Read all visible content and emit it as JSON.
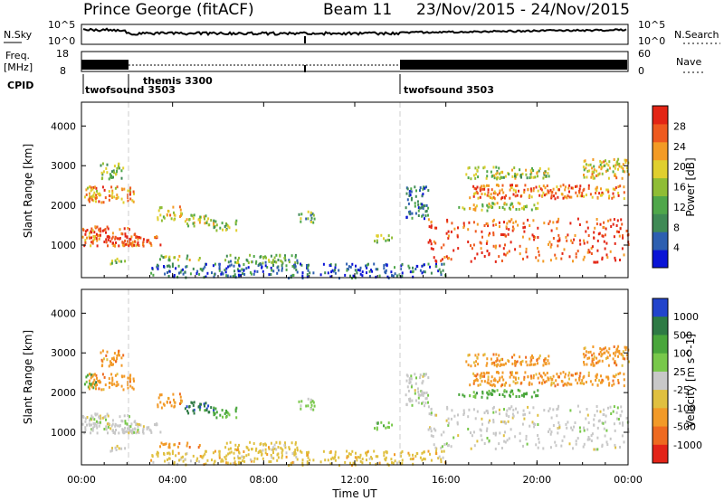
{
  "header": {
    "site": "Prince George (fitACF)",
    "beam": "Beam 11",
    "dates": "23/Nov/2015 - 24/Nov/2015"
  },
  "nsky_panel": {
    "left_label": "N.Sky",
    "left_ticks": [
      "10^5",
      "10^0"
    ],
    "right_label": "N.Search",
    "right_ticks": [
      "10^5",
      "10^0"
    ]
  },
  "freq_panel": {
    "left_label_1": "Freq.",
    "left_label_2": "[MHz]",
    "left_ticks": [
      "18",
      "8"
    ],
    "right_label": "Nave",
    "right_ticks": [
      "60",
      "0"
    ]
  },
  "cpid": {
    "label": "CPID",
    "entries": [
      "twofsound 3503",
      "themis 3300",
      "twofsound 3503"
    ]
  },
  "x_axis": {
    "title": "Time UT",
    "ticks": [
      "00:00",
      "04:00",
      "08:00",
      "12:00",
      "16:00",
      "20:00",
      "00:00"
    ]
  },
  "chart_data": [
    {
      "type": "heatmap",
      "title": "Power",
      "xlabel": "Time UT",
      "ylabel": "Slant Range [km]",
      "xlim_hours": [
        0,
        24
      ],
      "ylim": [
        180,
        4600
      ],
      "y_ticks": [
        1000,
        2000,
        3000,
        4000
      ],
      "colorbar": {
        "label": "Power [dB]",
        "tick_labels": [
          "4",
          "8",
          "12",
          "16",
          "20",
          "24",
          "28"
        ],
        "range": [
          0,
          30
        ],
        "colors": [
          "#0a14d6",
          "#2d5fb0",
          "#3f8a55",
          "#4fa74a",
          "#8fbd35",
          "#e0cf2e",
          "#f39b25",
          "#ee5a1f",
          "#e32515"
        ]
      },
      "regions": [
        {
          "t0": 0.0,
          "t1": 0.6,
          "r0": 2150,
          "r1": 2500,
          "level": 20
        },
        {
          "t0": 0.3,
          "t1": 2.3,
          "r0": 2100,
          "r1": 2500,
          "level": 22
        },
        {
          "t0": 0.8,
          "t1": 1.8,
          "r0": 2700,
          "r1": 3100,
          "level": 14
        },
        {
          "t0": 0.0,
          "t1": 2.5,
          "r0": 1000,
          "r1": 1500,
          "level": 25
        },
        {
          "t0": 1.3,
          "t1": 3.5,
          "r0": 1000,
          "r1": 1250,
          "level": 27
        },
        {
          "t0": 1.2,
          "t1": 2.0,
          "r0": 550,
          "r1": 700,
          "level": 14
        },
        {
          "t0": 3.3,
          "t1": 4.4,
          "r0": 1650,
          "r1": 2000,
          "level": 18
        },
        {
          "t0": 4.5,
          "t1": 5.8,
          "r0": 1500,
          "r1": 1800,
          "level": 16
        },
        {
          "t0": 5.7,
          "t1": 6.8,
          "r0": 1400,
          "r1": 1650,
          "level": 13
        },
        {
          "t0": 3.4,
          "t1": 5.2,
          "r0": 650,
          "r1": 780,
          "level": 15
        },
        {
          "t0": 6.2,
          "t1": 9.5,
          "r0": 560,
          "r1": 780,
          "level": 12
        },
        {
          "t0": 3.0,
          "t1": 16.0,
          "r0": 200,
          "r1": 560,
          "level": 6
        },
        {
          "t0": 9.5,
          "t1": 10.2,
          "r0": 1600,
          "r1": 1900,
          "level": 12
        },
        {
          "t0": 12.8,
          "t1": 13.6,
          "r0": 1100,
          "r1": 1300,
          "level": 14
        },
        {
          "t0": 14.2,
          "t1": 15.2,
          "r0": 1700,
          "r1": 2500,
          "level": 6
        },
        {
          "t0": 15.2,
          "t1": 24.0,
          "r0": 600,
          "r1": 1700,
          "level": 26
        },
        {
          "t0": 17.0,
          "t1": 23.8,
          "r0": 2200,
          "r1": 2550,
          "level": 23
        },
        {
          "t0": 16.8,
          "t1": 20.5,
          "r0": 2700,
          "r1": 3000,
          "level": 15
        },
        {
          "t0": 22.0,
          "t1": 24.0,
          "r0": 2700,
          "r1": 3200,
          "level": 18
        },
        {
          "t0": 16.5,
          "t1": 20.0,
          "r0": 1900,
          "r1": 2100,
          "level": 16
        }
      ]
    },
    {
      "type": "heatmap",
      "title": "Velocity",
      "xlabel": "Time UT",
      "ylabel": "Slant Range [km]",
      "xlim_hours": [
        0,
        24
      ],
      "ylim": [
        180,
        4600
      ],
      "y_ticks": [
        1000,
        2000,
        3000,
        4000
      ],
      "colorbar": {
        "label": "Velocity [m s^-1]",
        "tick_labels": [
          "1000",
          "500",
          "100",
          "25",
          "-25",
          "-100",
          "-500",
          "-1000"
        ],
        "colors": [
          "#2244cc",
          "#2e7a44",
          "#49a63b",
          "#78c84a",
          "#c8c8c8",
          "#e0c040",
          "#f29a28",
          "#ee6a20",
          "#e32418"
        ]
      },
      "regions": [
        {
          "t0": 0.0,
          "t1": 0.6,
          "r0": 2150,
          "r1": 2500,
          "cat": 2
        },
        {
          "t0": 0.3,
          "t1": 2.3,
          "r0": 2100,
          "r1": 2500,
          "cat": 6
        },
        {
          "t0": 0.8,
          "t1": 1.8,
          "r0": 2700,
          "r1": 3100,
          "cat": 6
        },
        {
          "t0": 0.0,
          "t1": 2.5,
          "r0": 1000,
          "r1": 1500,
          "cat": 4
        },
        {
          "t0": 1.3,
          "t1": 3.5,
          "r0": 1000,
          "r1": 1250,
          "cat": 4
        },
        {
          "t0": 1.2,
          "t1": 2.0,
          "r0": 550,
          "r1": 700,
          "cat": 4
        },
        {
          "t0": 3.3,
          "t1": 4.4,
          "r0": 1650,
          "r1": 2000,
          "cat": 6
        },
        {
          "t0": 4.5,
          "t1": 5.8,
          "r0": 1500,
          "r1": 1800,
          "cat": 1
        },
        {
          "t0": 5.7,
          "t1": 6.8,
          "r0": 1400,
          "r1": 1650,
          "cat": 2
        },
        {
          "t0": 3.4,
          "t1": 5.2,
          "r0": 650,
          "r1": 780,
          "cat": 6
        },
        {
          "t0": 6.2,
          "t1": 9.5,
          "r0": 560,
          "r1": 780,
          "cat": 5
        },
        {
          "t0": 3.0,
          "t1": 16.0,
          "r0": 200,
          "r1": 560,
          "cat": 5
        },
        {
          "t0": 9.5,
          "t1": 10.2,
          "r0": 1600,
          "r1": 1900,
          "cat": 3
        },
        {
          "t0": 12.8,
          "t1": 13.6,
          "r0": 1100,
          "r1": 1300,
          "cat": 3
        },
        {
          "t0": 14.2,
          "t1": 15.2,
          "r0": 1700,
          "r1": 2500,
          "cat": 4
        },
        {
          "t0": 15.2,
          "t1": 24.0,
          "r0": 600,
          "r1": 1700,
          "cat": 4
        },
        {
          "t0": 17.0,
          "t1": 23.8,
          "r0": 2200,
          "r1": 2550,
          "cat": 6
        },
        {
          "t0": 16.8,
          "t1": 20.5,
          "r0": 2700,
          "r1": 3000,
          "cat": 6
        },
        {
          "t0": 22.0,
          "t1": 24.0,
          "r0": 2700,
          "r1": 3200,
          "cat": 6
        },
        {
          "t0": 16.5,
          "t1": 20.0,
          "r0": 1900,
          "r1": 2100,
          "cat": 2
        }
      ]
    }
  ]
}
